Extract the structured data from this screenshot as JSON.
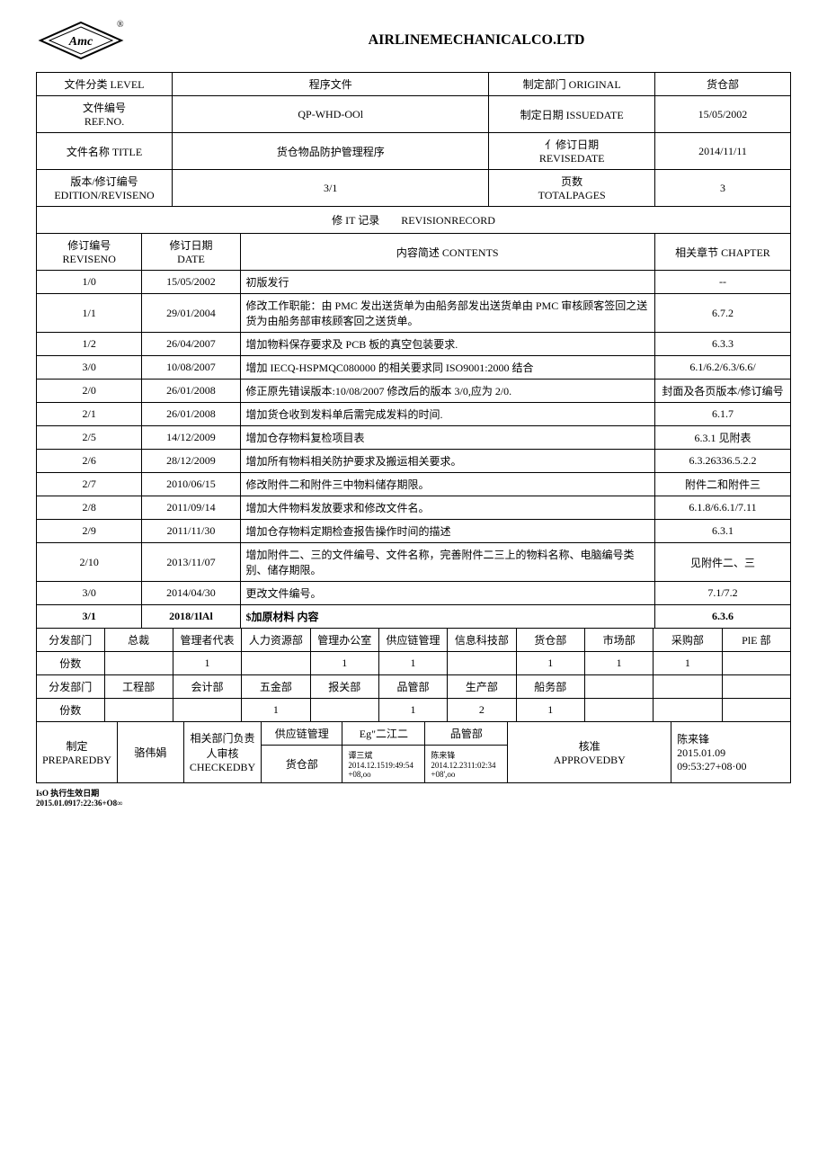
{
  "company": "AIRLINEMECHANICALCO.LTD",
  "header": {
    "level_label": "文件分类 LEVEL",
    "level_value": "程序文件",
    "original_label": "制定部门 ORIGINAL",
    "original_value": "货仓部",
    "refno_label": "文件编号\nREF.NO.",
    "refno_value": "QP-WHD-OOl",
    "issuedate_label": "制定日期 ISSUEDATE",
    "issuedate_value": "15/05/2002",
    "title_label": "文件名称 TITLE",
    "title_value": "货仓物品防护管理程序",
    "revisedate_label": "亻修订日期\nREVISEDATE",
    "revisedate_value": "2014/11/11",
    "edition_label": "版本/修订编号\nEDITION/REVISENO",
    "edition_value": "3/1",
    "pages_label": "页数\nTOTALPAGES",
    "pages_value": "3"
  },
  "revision_section_title": "修 IT 记录　　REVISIONRECORD",
  "revision_headers": {
    "no": "修订编号\nREVISENO",
    "date": "修订日期\nDATE",
    "contents": "内容简述 CONTENTS",
    "chapter": "相关章节 CHAPTER"
  },
  "revisions": [
    {
      "no": "1/0",
      "date": "15/05/2002",
      "contents": "初版发行",
      "chapter": "--"
    },
    {
      "no": "1/1",
      "date": "29/01/2004",
      "contents": "修改工作职能：由 PMC 发出送货单为由船务部发出送货单由 PMC 审核顾客签回之送货为由船务部审核顾客回之送货单。",
      "chapter": "6.7.2"
    },
    {
      "no": "1/2",
      "date": "26/04/2007",
      "contents": "增加物料保存要求及 PCB 板的真空包装要求.",
      "chapter": "6.3.3"
    },
    {
      "no": "3/0",
      "date": "10/08/2007",
      "contents": "增加 IECQ-HSPMQC080000 的相关要求同 ISO9001:2000 结合",
      "chapter": "6.1/6.2/6.3/6.6/"
    },
    {
      "no": "2/0",
      "date": "26/01/2008",
      "contents": "修正原先错误版本:10/08/2007 修改后的版本 3/0,应为 2/0.",
      "chapter": "封面及各页版本/修订编号"
    },
    {
      "no": "2/1",
      "date": "26/01/2008",
      "contents": "增加货仓收到发料单后需完成发料的时间.",
      "chapter": "6.1.7"
    },
    {
      "no": "2/5",
      "date": "14/12/2009",
      "contents": "增加仓存物料复检项目表",
      "chapter": "6.3.1 见附表"
    },
    {
      "no": "2/6",
      "date": "28/12/2009",
      "contents": "增加所有物料相关防护要求及搬运相关要求。",
      "chapter": "6.3.26336.5.2.2"
    },
    {
      "no": "2/7",
      "date": "2010/06/15",
      "contents": "修改附件二和附件三中物料储存期限。",
      "chapter": "附件二和附件三"
    },
    {
      "no": "2/8",
      "date": "2011/09/14",
      "contents": "增加大件物料发放要求和修改文件名。",
      "chapter": "6.1.8/6.6.1/7.11"
    },
    {
      "no": "2/9",
      "date": "2011/11/30",
      "contents": "增加仓存物料定期检查报告操作时间的描述",
      "chapter": "6.3.1"
    },
    {
      "no": "2/10",
      "date": "2013/11/07",
      "contents": "增加附件二、三的文件编号、文件名称，完善附件二三上的物料名称、电脑编号类别、储存期限。",
      "chapter": "见附件二、三"
    },
    {
      "no": "3/0",
      "date": "2014/04/30",
      "contents": "更改文件编号。",
      "chapter": "7.1/7.2"
    },
    {
      "no": "3/1",
      "date": "2018/1lAl",
      "contents": "$加原材料 内容",
      "chapter": "6.3.6",
      "bold": true
    }
  ],
  "dist1": {
    "label": "分发部门",
    "depts": [
      "总裁",
      "管理者代表",
      "人力资源部",
      "管理办公室",
      "供应链管理",
      "信息科技部",
      "货仓部",
      "市场部",
      "采购部",
      "PlE 部"
    ],
    "count_label": "份数",
    "counts": [
      "",
      "1",
      "",
      "1",
      "1",
      "",
      "1",
      "1",
      "1",
      ""
    ]
  },
  "dist2": {
    "label": "分发部门",
    "depts": [
      "工程部",
      "会计部",
      "五金部",
      "报关部",
      "品管部",
      "生产部",
      "船务部",
      "",
      "",
      ""
    ],
    "count_label": "份数",
    "counts": [
      "",
      "",
      "1",
      "",
      "1",
      "2",
      "1",
      "",
      "",
      ""
    ]
  },
  "approval": {
    "prepared_label": "制定\nPREPAREDBY",
    "prepared_value": "骆伟娟",
    "checked_label": "相关部门负责人审核\nCHECKEDBY",
    "checked_row1_col1": "供应链管理",
    "checked_row1_col2": "Eg\"二江二",
    "checked_row1_col3": "品管部",
    "checked_row2_col1": "货仓部",
    "checked_row2_col2": "谭三斌\n2014.12.1519:49:54\n+08,oo",
    "checked_row2_col3": "陈来锋\n2014.12.2311:02:34\n+08',oo",
    "approved_label": "核准\nAPPROVEDBY",
    "approved_value": "陈来锋\n2015.01.09\n09:53:27+08·00"
  },
  "footer": "IsO 执行生效日期\n2015.01.0917:22:36+O8∞"
}
